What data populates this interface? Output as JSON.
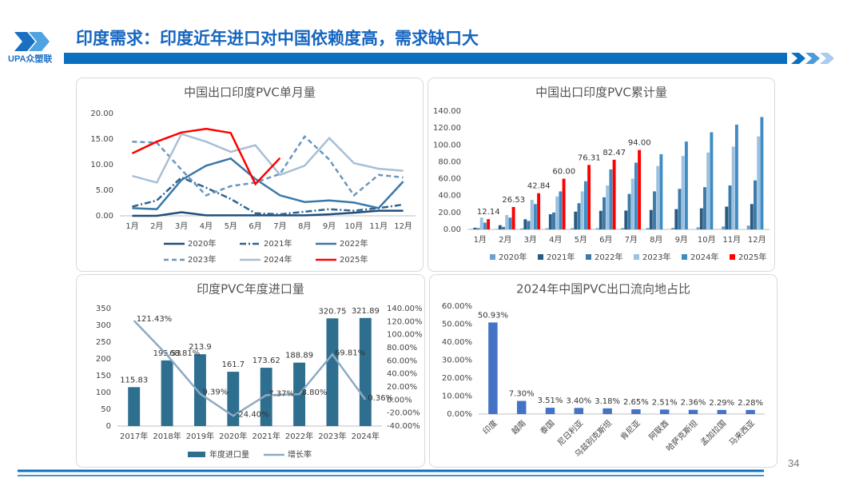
{
  "header": {
    "logo": "UPA众塑联",
    "title": "印度需求：印度近年进口对中国依赖度高，需求缺口大",
    "page_number": "34"
  },
  "chart_data": [
    {
      "type": "line",
      "title": "中国出口印度PVC单月量",
      "categories": [
        "1月",
        "2月",
        "3月",
        "4月",
        "5月",
        "6月",
        "7月",
        "8月",
        "9月",
        "10月",
        "11月",
        "12月"
      ],
      "ylim": [
        0,
        20
      ],
      "yticks": [
        {
          "value": 0,
          "label": "0.00"
        },
        {
          "value": 5,
          "label": "5.00"
        },
        {
          "value": 10,
          "label": "10.00"
        },
        {
          "value": 15,
          "label": "15.00"
        },
        {
          "value": 20,
          "label": "20.00"
        }
      ],
      "series": [
        {
          "name": "2020年",
          "color": "#1f4e79",
          "line_style": "solid",
          "values": [
            0,
            0,
            0.7,
            0.1,
            0.1,
            0.1,
            0.1,
            0.1,
            0.3,
            0.6,
            1.0,
            1.0
          ]
        },
        {
          "name": "2021年",
          "color": "#2e6390",
          "line_style": "dashdot",
          "values": [
            1.8,
            3.0,
            7.5,
            5.5,
            3.3,
            0.5,
            0.3,
            0.8,
            1.3,
            1.0,
            1.5,
            2.2
          ]
        },
        {
          "name": "2022年",
          "color": "#3a78a8",
          "line_style": "solid",
          "values": [
            1.5,
            1.3,
            7.0,
            9.8,
            11.2,
            7.2,
            4.0,
            2.7,
            3.0,
            2.6,
            1.5,
            6.7
          ]
        },
        {
          "name": "2023年",
          "color": "#6a96bd",
          "line_style": "dash",
          "values": [
            14.5,
            14.3,
            9.0,
            4.0,
            5.8,
            6.5,
            8.2,
            15.5,
            11.0,
            4.0,
            8.0,
            7.5
          ]
        },
        {
          "name": "2024年",
          "color": "#a8bfd6",
          "line_style": "solid",
          "values": [
            7.8,
            6.5,
            16.0,
            14.5,
            12.5,
            13.8,
            8.0,
            9.8,
            15.2,
            10.3,
            9.2,
            8.8
          ]
        },
        {
          "name": "2025年",
          "color": "#ff0000",
          "line_style": "solid",
          "values": [
            12.2,
            14.5,
            16.3,
            17.0,
            16.2,
            6.2,
            11.3,
            null,
            null,
            null,
            null,
            null
          ]
        }
      ]
    },
    {
      "type": "bar",
      "title": "中国出口印度PVC累计量",
      "categories": [
        "1月",
        "2月",
        "3月",
        "4月",
        "5月",
        "6月",
        "7月",
        "8月",
        "9月",
        "10月",
        "11月",
        "12月"
      ],
      "ylim": [
        0,
        140
      ],
      "yticks": [
        {
          "value": 0,
          "label": "0.00"
        },
        {
          "value": 20,
          "label": "20.00"
        },
        {
          "value": 40,
          "label": "40.00"
        },
        {
          "value": 60,
          "label": "60.00"
        },
        {
          "value": 80,
          "label": "80.00"
        },
        {
          "value": 100,
          "label": "100.00"
        },
        {
          "value": 120,
          "label": "120.00"
        },
        {
          "value": 140,
          "label": "140.00"
        }
      ],
      "series": [
        {
          "name": "2020年",
          "color": "#6d9fd0",
          "values": [
            0.5,
            0.5,
            1.2,
            1.3,
            1.4,
            1.5,
            1.6,
            1.7,
            1.9,
            2.5,
            3.5,
            4.5
          ]
        },
        {
          "name": "2021年",
          "color": "#2a5a80",
          "values": [
            2,
            5,
            12,
            18,
            21,
            22,
            22.3,
            23,
            24,
            25,
            27,
            30
          ]
        },
        {
          "name": "2022年",
          "color": "#3c7aa8",
          "values": [
            1.5,
            3,
            10,
            20,
            31,
            38,
            42,
            45,
            48,
            50,
            52,
            58
          ]
        },
        {
          "name": "2023年",
          "color": "#9cc0df",
          "values": [
            14,
            17,
            35,
            39,
            45,
            52,
            60,
            75,
            87,
            91,
            98,
            110
          ]
        },
        {
          "name": "2024年",
          "color": "#3f8cc4",
          "values": [
            8,
            14,
            30,
            45,
            57,
            71,
            79,
            89,
            104,
            115,
            124,
            133
          ]
        },
        {
          "name": "2025年",
          "color": "#ff0000",
          "data_labels": true,
          "values": [
            12.14,
            26.53,
            42.84,
            60,
            76.31,
            82.47,
            94,
            null,
            null,
            null,
            null,
            null
          ],
          "value_labels": [
            "12.14",
            "26.53",
            "42.84",
            "60.00",
            "76.31",
            "82.47",
            "94.00",
            null,
            null,
            null,
            null,
            null
          ]
        }
      ]
    },
    {
      "type": "combo",
      "title": "印度PVC年度进口量",
      "categories": [
        "2017年",
        "2018年",
        "2019年",
        "2020年",
        "2021年",
        "2022年",
        "2023年",
        "2024年"
      ],
      "ylim": [
        0,
        350
      ],
      "yticks": [
        0,
        50,
        100,
        150,
        200,
        250,
        300,
        350
      ],
      "y2lim": [
        -40,
        140
      ],
      "y2ticks": [
        {
          "value": -40,
          "label": "-40.00%"
        },
        {
          "value": -20,
          "label": "-20.00%"
        },
        {
          "value": 0,
          "label": "0.00%"
        },
        {
          "value": 20,
          "label": "20.00%"
        },
        {
          "value": 40,
          "label": "40.00%"
        },
        {
          "value": 60,
          "label": "60.00%"
        },
        {
          "value": 80,
          "label": "80.00%"
        },
        {
          "value": 100,
          "label": "100.00%"
        },
        {
          "value": 120,
          "label": "120.00%"
        },
        {
          "value": 140,
          "label": "140.00%"
        }
      ],
      "series": [
        {
          "name": "年度进口量",
          "type": "bar",
          "color": "#2e6e8e",
          "data_labels": true,
          "values": [
            115.83,
            195.53,
            213.9,
            161.7,
            173.62,
            188.89,
            320.75,
            321.89
          ]
        },
        {
          "name": "增长率",
          "type": "line",
          "axis": "y2",
          "color": "#8eaac4",
          "data_labels": true,
          "values": [
            121.43,
            68.81,
            9.39,
            -24.4,
            7.37,
            8.8,
            69.81,
            0.36
          ],
          "value_labels": [
            "121.43%",
            "68.81%",
            "9.39%",
            "-24.40%",
            "7.37%",
            "8.80%",
            "69.81%",
            "0.36%"
          ]
        }
      ]
    },
    {
      "type": "bar",
      "title": "2024年中国PVC出口流向地占比",
      "categories": [
        "印度",
        "越南",
        "泰国",
        "尼日利亚",
        "乌兹别克斯坦",
        "肯尼亚",
        "阿联酋",
        "哈萨克斯坦",
        "孟加拉国",
        "马来西亚"
      ],
      "color": "#4472c4",
      "data_labels": true,
      "values": [
        50.93,
        7.3,
        3.51,
        3.4,
        3.18,
        2.65,
        2.51,
        2.36,
        2.29,
        2.28
      ],
      "value_labels": [
        "50.93%",
        "7.30%",
        "3.51%",
        "3.40%",
        "3.18%",
        "2.65%",
        "2.51%",
        "2.36%",
        "2.29%",
        "2.28%"
      ],
      "ylim": [
        0,
        60
      ],
      "yticks": [
        {
          "value": 0,
          "label": "0.00%"
        },
        {
          "value": 10,
          "label": "10.00%"
        },
        {
          "value": 20,
          "label": "20.00%"
        },
        {
          "value": 30,
          "label": "30.00%"
        },
        {
          "value": 40,
          "label": "40.00%"
        },
        {
          "value": 50,
          "label": "50.00%"
        },
        {
          "value": 60,
          "label": "60.00%"
        }
      ]
    }
  ]
}
